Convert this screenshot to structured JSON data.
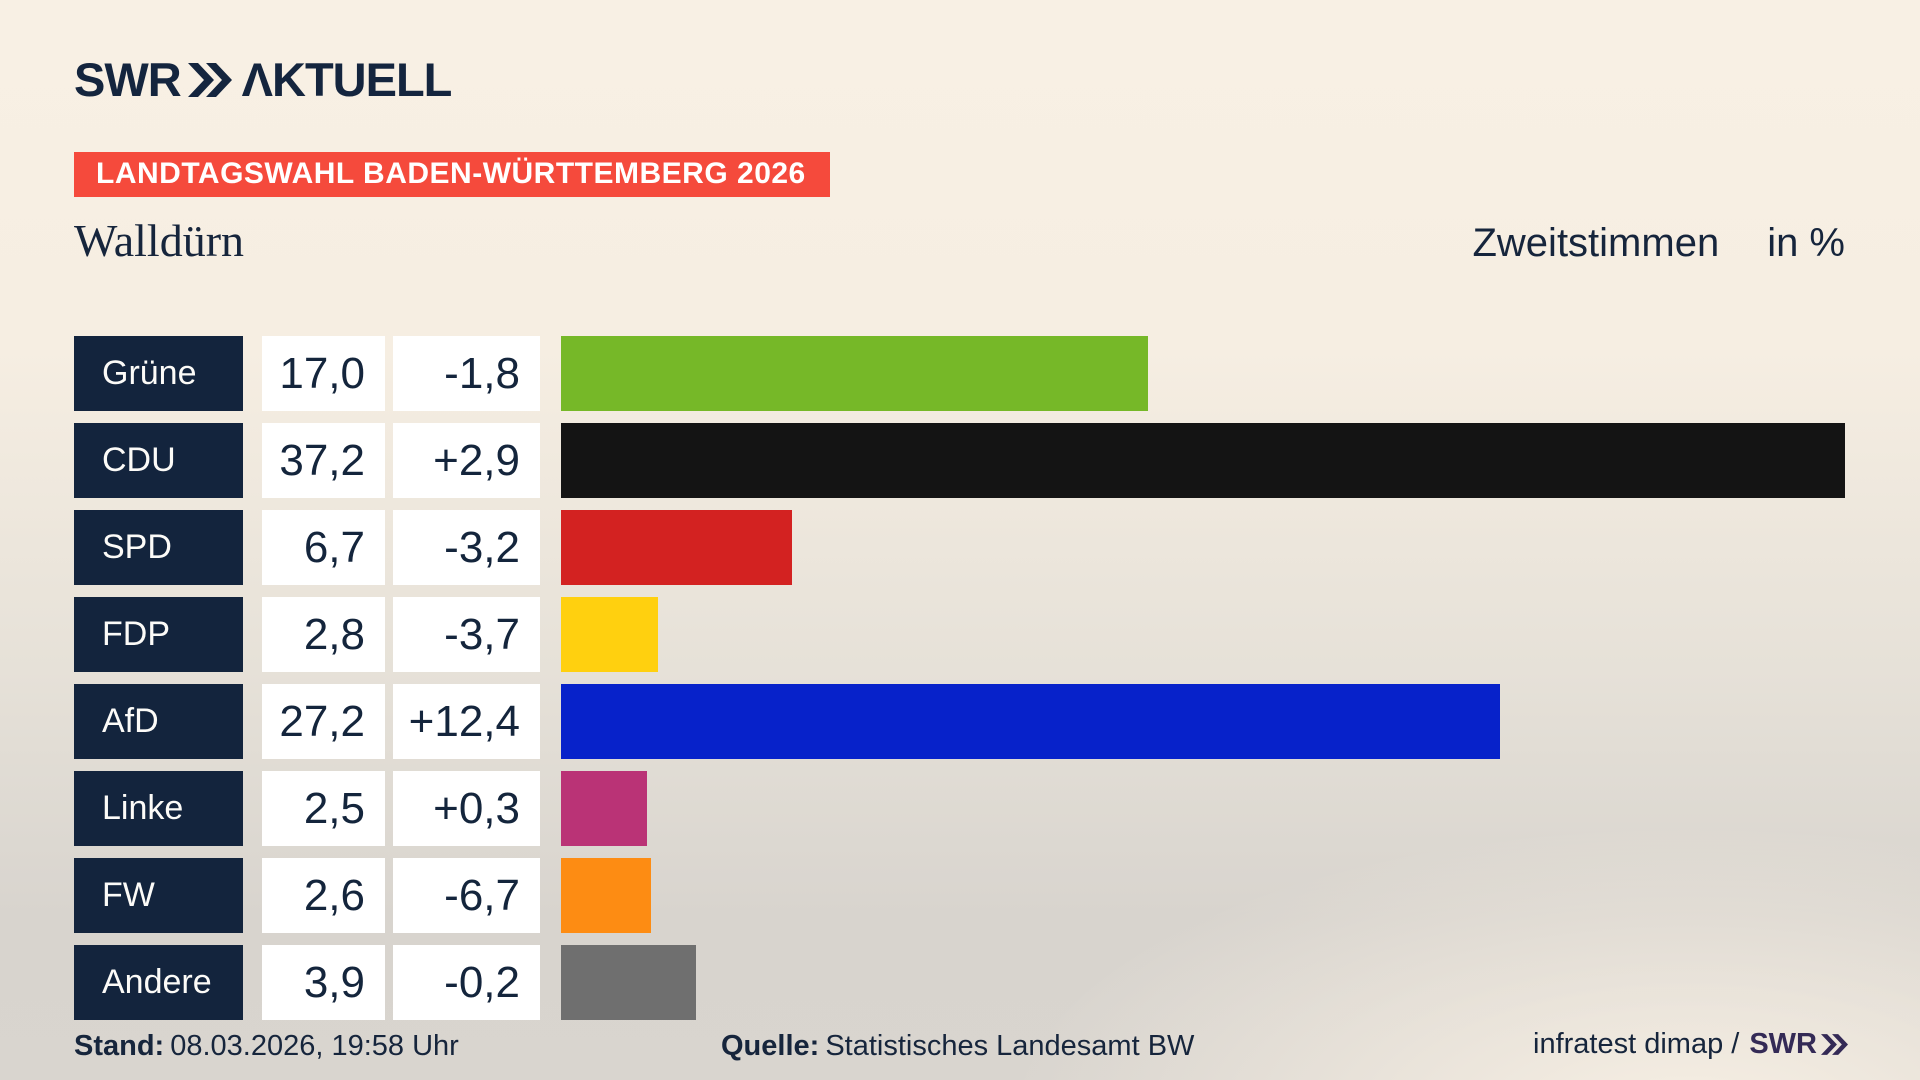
{
  "header": {
    "logo_swr": "SWR",
    "logo_aktuell": "ΛKTUELL",
    "banner": "LANDTAGSWAHL BADEN-WÜRTTEMBERG 2026"
  },
  "title": {
    "municipality": "Walldürn",
    "measure": "Zweitstimmen",
    "unit": "in %"
  },
  "chart_data": {
    "type": "bar",
    "orientation": "horizontal",
    "title": "Zweitstimmen in % — Walldürn, Landtagswahl Baden-Württemberg 2026",
    "unit": "percent",
    "max_display_value": 37.2,
    "categories": [
      "Grüne",
      "CDU",
      "SPD",
      "FDP",
      "AfD",
      "Linke",
      "FW",
      "Andere"
    ],
    "values": [
      17.0,
      37.2,
      6.7,
      2.8,
      27.2,
      2.5,
      2.6,
      3.9
    ],
    "value_labels": [
      "17,0",
      "37,2",
      "6,7",
      "2,8",
      "27,2",
      "2,5",
      "2,6",
      "3,9"
    ],
    "change_values": [
      -1.8,
      2.9,
      -3.2,
      -3.7,
      12.4,
      0.3,
      -6.7,
      -0.2
    ],
    "change_labels": [
      "-1,8",
      "+2,9",
      "-3,2",
      "-3,7",
      "+12,4",
      "+0,3",
      "-6,7",
      "-0,2"
    ],
    "bar_colors": [
      "#76b828",
      "#141414",
      "#d32221",
      "#ffd00f",
      "#0722ca",
      "#ba3376",
      "#fd8c13",
      "#6f6f6f"
    ],
    "label_box_color": "#13243d",
    "legend": "none",
    "grid": false
  },
  "footer": {
    "stand_label": "Stand:",
    "stand_value": "08.03.2026, 19:58 Uhr",
    "quelle_label": "Quelle:",
    "quelle_value": "Statistisches Landesamt BW",
    "credit_text": "infratest dimap /",
    "credit_logo": "SWR"
  },
  "colors": {
    "banner_red": "#f54a3c",
    "navy_text": "#16253c",
    "background_top": "#f8f0e4",
    "background_bottom": "#d8d4ce",
    "box_white": "#ffffff"
  }
}
